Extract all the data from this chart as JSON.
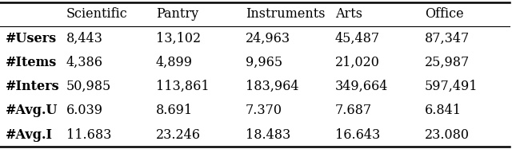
{
  "columns": [
    "Scientific",
    "Pantry",
    "Instruments",
    "Arts",
    "Office"
  ],
  "rows": [
    [
      "#Users",
      "8,443",
      "13,102",
      "24,963",
      "45,487",
      "87,347"
    ],
    [
      "#Items",
      "4,386",
      "4,899",
      "9,965",
      "21,020",
      "25,987"
    ],
    [
      "#Inters",
      "50,985",
      "113,861",
      "183,964",
      "349,664",
      "597,491"
    ],
    [
      "#Avg.U",
      "6.039",
      "8.691",
      "7.370",
      "7.687",
      "6.841"
    ],
    [
      "#Avg.I",
      "11.683",
      "23.246",
      "18.483",
      "16.643",
      "23.080"
    ]
  ],
  "background_color": "#ffffff",
  "header_fontsize": 11.5,
  "cell_fontsize": 11.5,
  "fig_width": 6.4,
  "fig_height": 1.87
}
